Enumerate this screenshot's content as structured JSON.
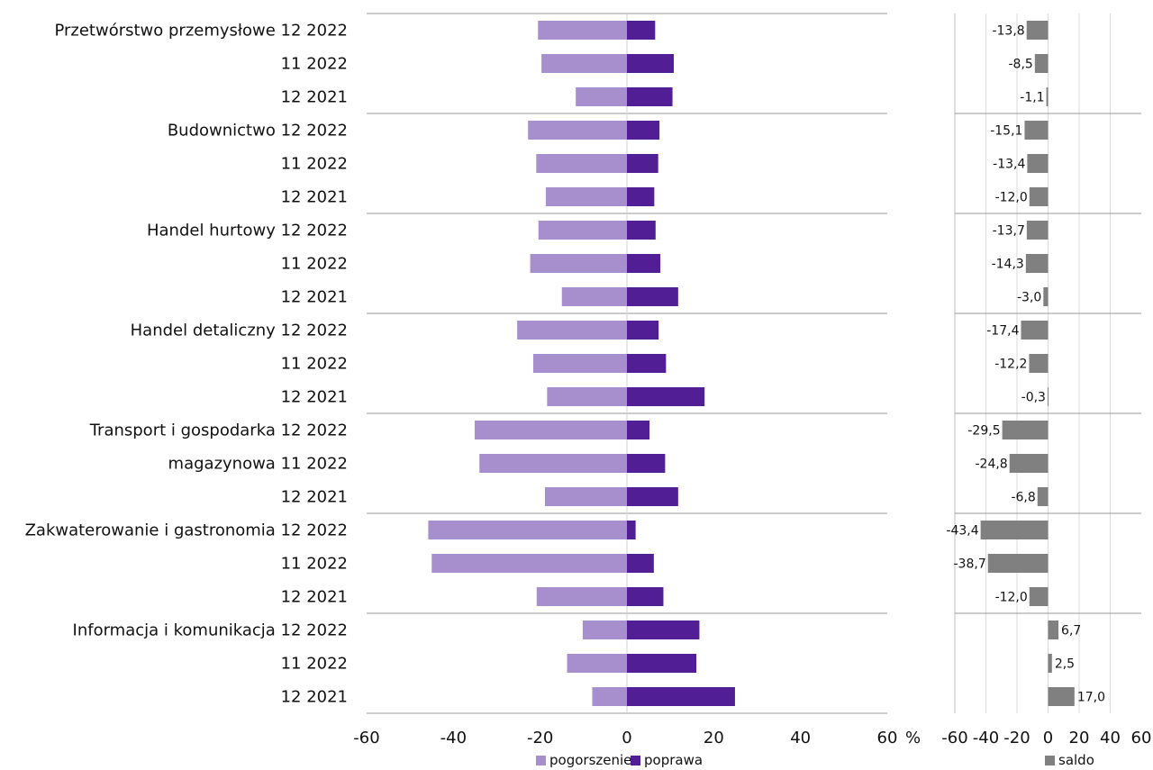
{
  "chart_data": [
    {
      "type": "bar",
      "orientation": "horizontal",
      "title": "",
      "xlabel": "%",
      "ylabel": "",
      "xlim": [
        -60,
        60
      ],
      "xticks": [
        "-60",
        "-40",
        "-20",
        "0",
        "20",
        "40",
        "60"
      ],
      "unit_label": "%",
      "legend_position": "bottom",
      "legend": [
        "pogorszenie",
        "poprawa"
      ],
      "groups": [
        {
          "name": "Przetwórstwo przemysłowe",
          "name_lines": [
            "Przetwórstwo przemysłowe"
          ]
        },
        {
          "name": "Budownictwo",
          "name_lines": [
            "Budownictwo"
          ]
        },
        {
          "name": "Handel hurtowy",
          "name_lines": [
            "Handel hurtowy"
          ]
        },
        {
          "name": "Handel detaliczny",
          "name_lines": [
            "Handel detaliczny"
          ]
        },
        {
          "name": "Transport i gospodarka magazynowa",
          "name_lines": [
            "Transport i gospodarka",
            "magazynowa"
          ]
        },
        {
          "name": "Zakwaterowanie i gastronomia",
          "name_lines": [
            "Zakwaterowanie i gastronomia"
          ]
        },
        {
          "name": "Informacja i komunikacja",
          "name_lines": [
            "Informacja i komunikacja"
          ]
        }
      ],
      "periods": [
        "12 2022",
        "11 2022",
        "12 2021"
      ],
      "series": [
        {
          "name": "pogorszenie",
          "color": "#a78fcd",
          "values": [
            -20.5,
            -19.7,
            -11.8,
            -22.8,
            -20.9,
            -18.7,
            -20.4,
            -22.3,
            -15.0,
            -25.3,
            -21.6,
            -18.4,
            -35.1,
            -34.0,
            -18.9,
            -45.8,
            -45.0,
            -20.8,
            -10.2,
            -13.8,
            -8.0
          ]
        },
        {
          "name": "poprawa",
          "color": "#521e96",
          "values": [
            6.5,
            10.8,
            10.5,
            7.5,
            7.2,
            6.3,
            6.6,
            7.7,
            11.8,
            7.3,
            9.0,
            17.9,
            5.2,
            8.8,
            11.8,
            2.0,
            6.2,
            8.4,
            16.7,
            16.0,
            24.9
          ]
        }
      ]
    },
    {
      "type": "bar",
      "orientation": "horizontal",
      "title": "",
      "xlim": [
        -60,
        60
      ],
      "xticks": [
        "-60",
        "-40",
        "-20",
        "0",
        "20",
        "40",
        "60"
      ],
      "grid": true,
      "legend_position": "bottom",
      "legend": [
        "saldo"
      ],
      "series": [
        {
          "name": "saldo",
          "color": "#808080",
          "values": [
            -13.8,
            -8.5,
            -1.1,
            -15.1,
            -13.4,
            -12.0,
            -13.7,
            -14.3,
            -3.0,
            -17.4,
            -12.2,
            -0.3,
            -29.5,
            -24.8,
            -6.8,
            -43.4,
            -38.7,
            -12.0,
            6.7,
            2.5,
            17.0
          ],
          "labels": [
            "-13,8",
            "-8,5",
            "-1,1",
            "-15,1",
            "-13,4",
            "-12,0",
            "-13,7",
            "-14,3",
            "-3,0",
            "-17,4",
            "-12,2",
            "-0,3",
            "-29,5",
            "-24,8",
            "-6,8",
            "-43,4",
            "-38,7",
            "-12,0",
            "6,7",
            "2,5",
            "17,0"
          ]
        }
      ]
    }
  ]
}
